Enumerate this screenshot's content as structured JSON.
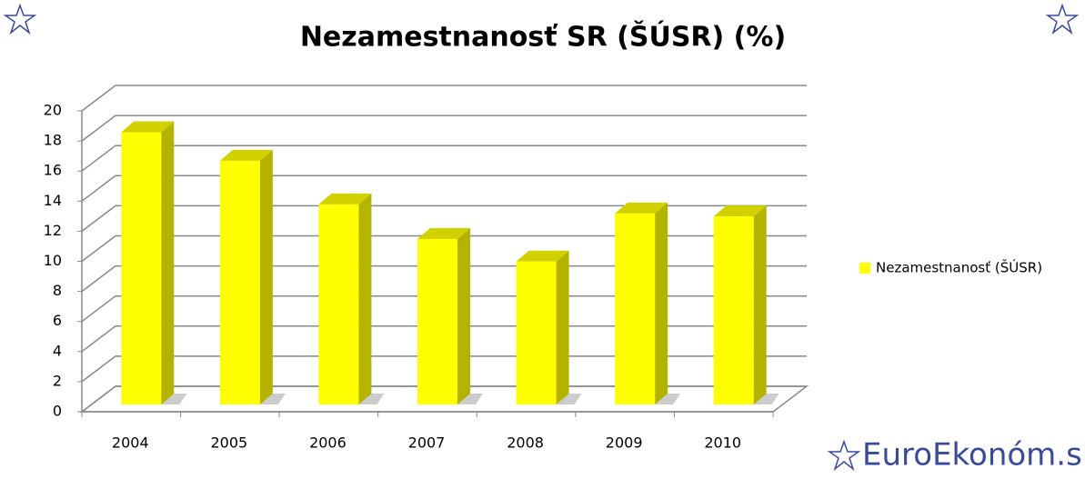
{
  "chart_data": {
    "type": "bar3d",
    "title": "Nezamestnanosť SR (ŠÚSR) (%)",
    "categories": [
      "2004",
      "2005",
      "2006",
      "2007",
      "2008",
      "2009",
      "2010"
    ],
    "series": [
      {
        "name": "Nezamestnanosť  (ŠÚSR)",
        "color": "#ffff00",
        "values": [
          18.1,
          16.2,
          13.3,
          11.0,
          9.5,
          12.7,
          12.5
        ]
      }
    ],
    "ylim": [
      0,
      20
    ],
    "yticks": [
      0,
      2,
      4,
      6,
      8,
      10,
      12,
      14,
      16,
      18,
      20
    ],
    "grid": true,
    "legend": "right"
  },
  "logo": "EuroEkonóm.sk"
}
